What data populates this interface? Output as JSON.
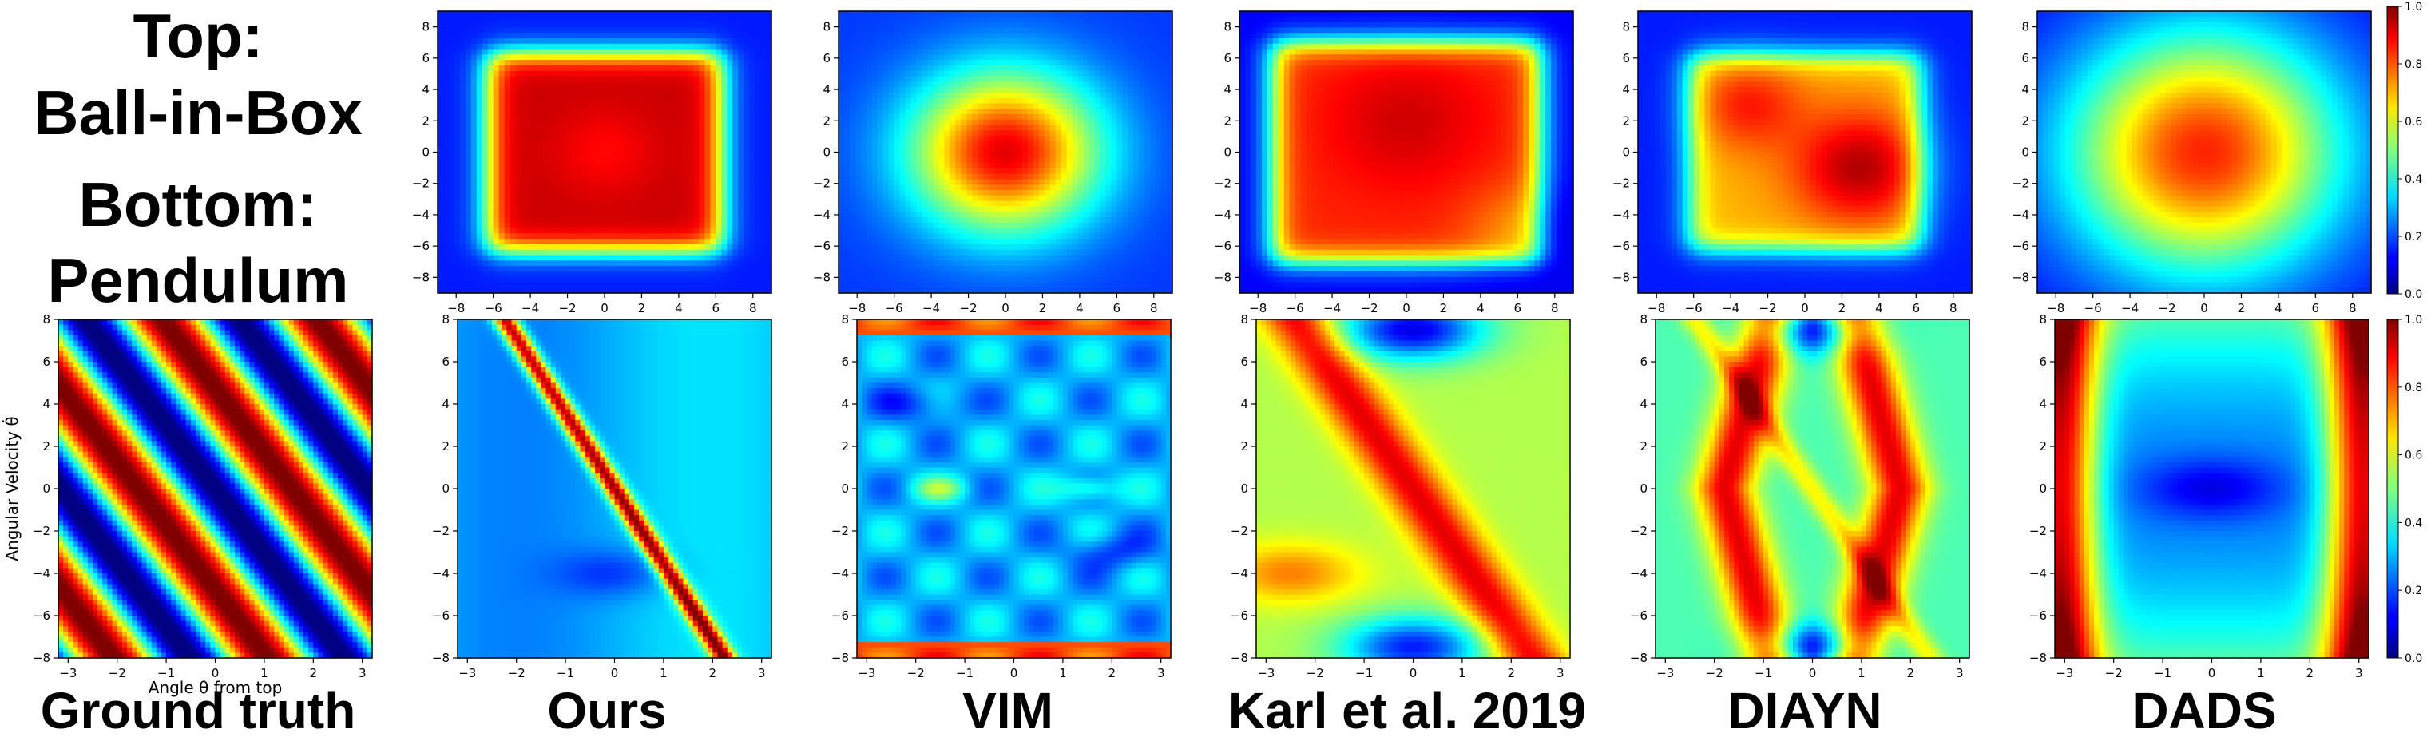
{
  "legend": {
    "top_label": "Top:",
    "top_name": "Ball-in-Box",
    "bottom_label": "Bottom:",
    "bottom_name": "Pendulum"
  },
  "captions": [
    "Ground truth",
    "Ours",
    "VIM",
    "Karl et al. 2019",
    "DIAYN",
    "DADS"
  ],
  "colormap": "jet",
  "colors": {
    "background": "#ffffff",
    "text": "#000000",
    "axis": "#000000"
  },
  "chart_data": [
    {
      "type": "heatmap",
      "row": "top",
      "environment": "Ball-in-Box",
      "panels": [
        "Ours",
        "VIM",
        "Karl et al. 2019",
        "DIAYN",
        "DADS"
      ],
      "xlim": [
        -9,
        9
      ],
      "ylim": [
        -9,
        9
      ],
      "xticks": [
        -8,
        -6,
        -4,
        -2,
        0,
        2,
        4,
        6,
        8
      ],
      "yticks": [
        -8,
        -6,
        -4,
        -2,
        0,
        2,
        4,
        6,
        8
      ],
      "xlabel": "",
      "ylabel": "",
      "colorbar": {
        "range": [
          0.0,
          1.0
        ],
        "ticks": [
          "0.0",
          "0.2",
          "0.4",
          "0.6",
          "0.8",
          "1.0"
        ]
      }
    },
    {
      "type": "heatmap",
      "row": "bottom",
      "environment": "Pendulum",
      "panels": [
        "Ground truth",
        "Ours",
        "VIM",
        "Karl et al. 2019",
        "DIAYN",
        "DADS"
      ],
      "xlim": [
        -3.2,
        3.2
      ],
      "ylim": [
        -8,
        8
      ],
      "xticks": [
        -3,
        -2,
        -1,
        0,
        1,
        2,
        3
      ],
      "yticks": [
        -8,
        -6,
        -4,
        -2,
        0,
        2,
        4,
        6,
        8
      ],
      "xlabel": "Angle θ from top",
      "ylabel": "Angular Velocity θ̇",
      "colorbar": {
        "range": [
          0.0,
          1.0
        ],
        "ticks": [
          "0.0",
          "0.2",
          "0.4",
          "0.6",
          "0.8",
          "1.0"
        ]
      }
    }
  ]
}
